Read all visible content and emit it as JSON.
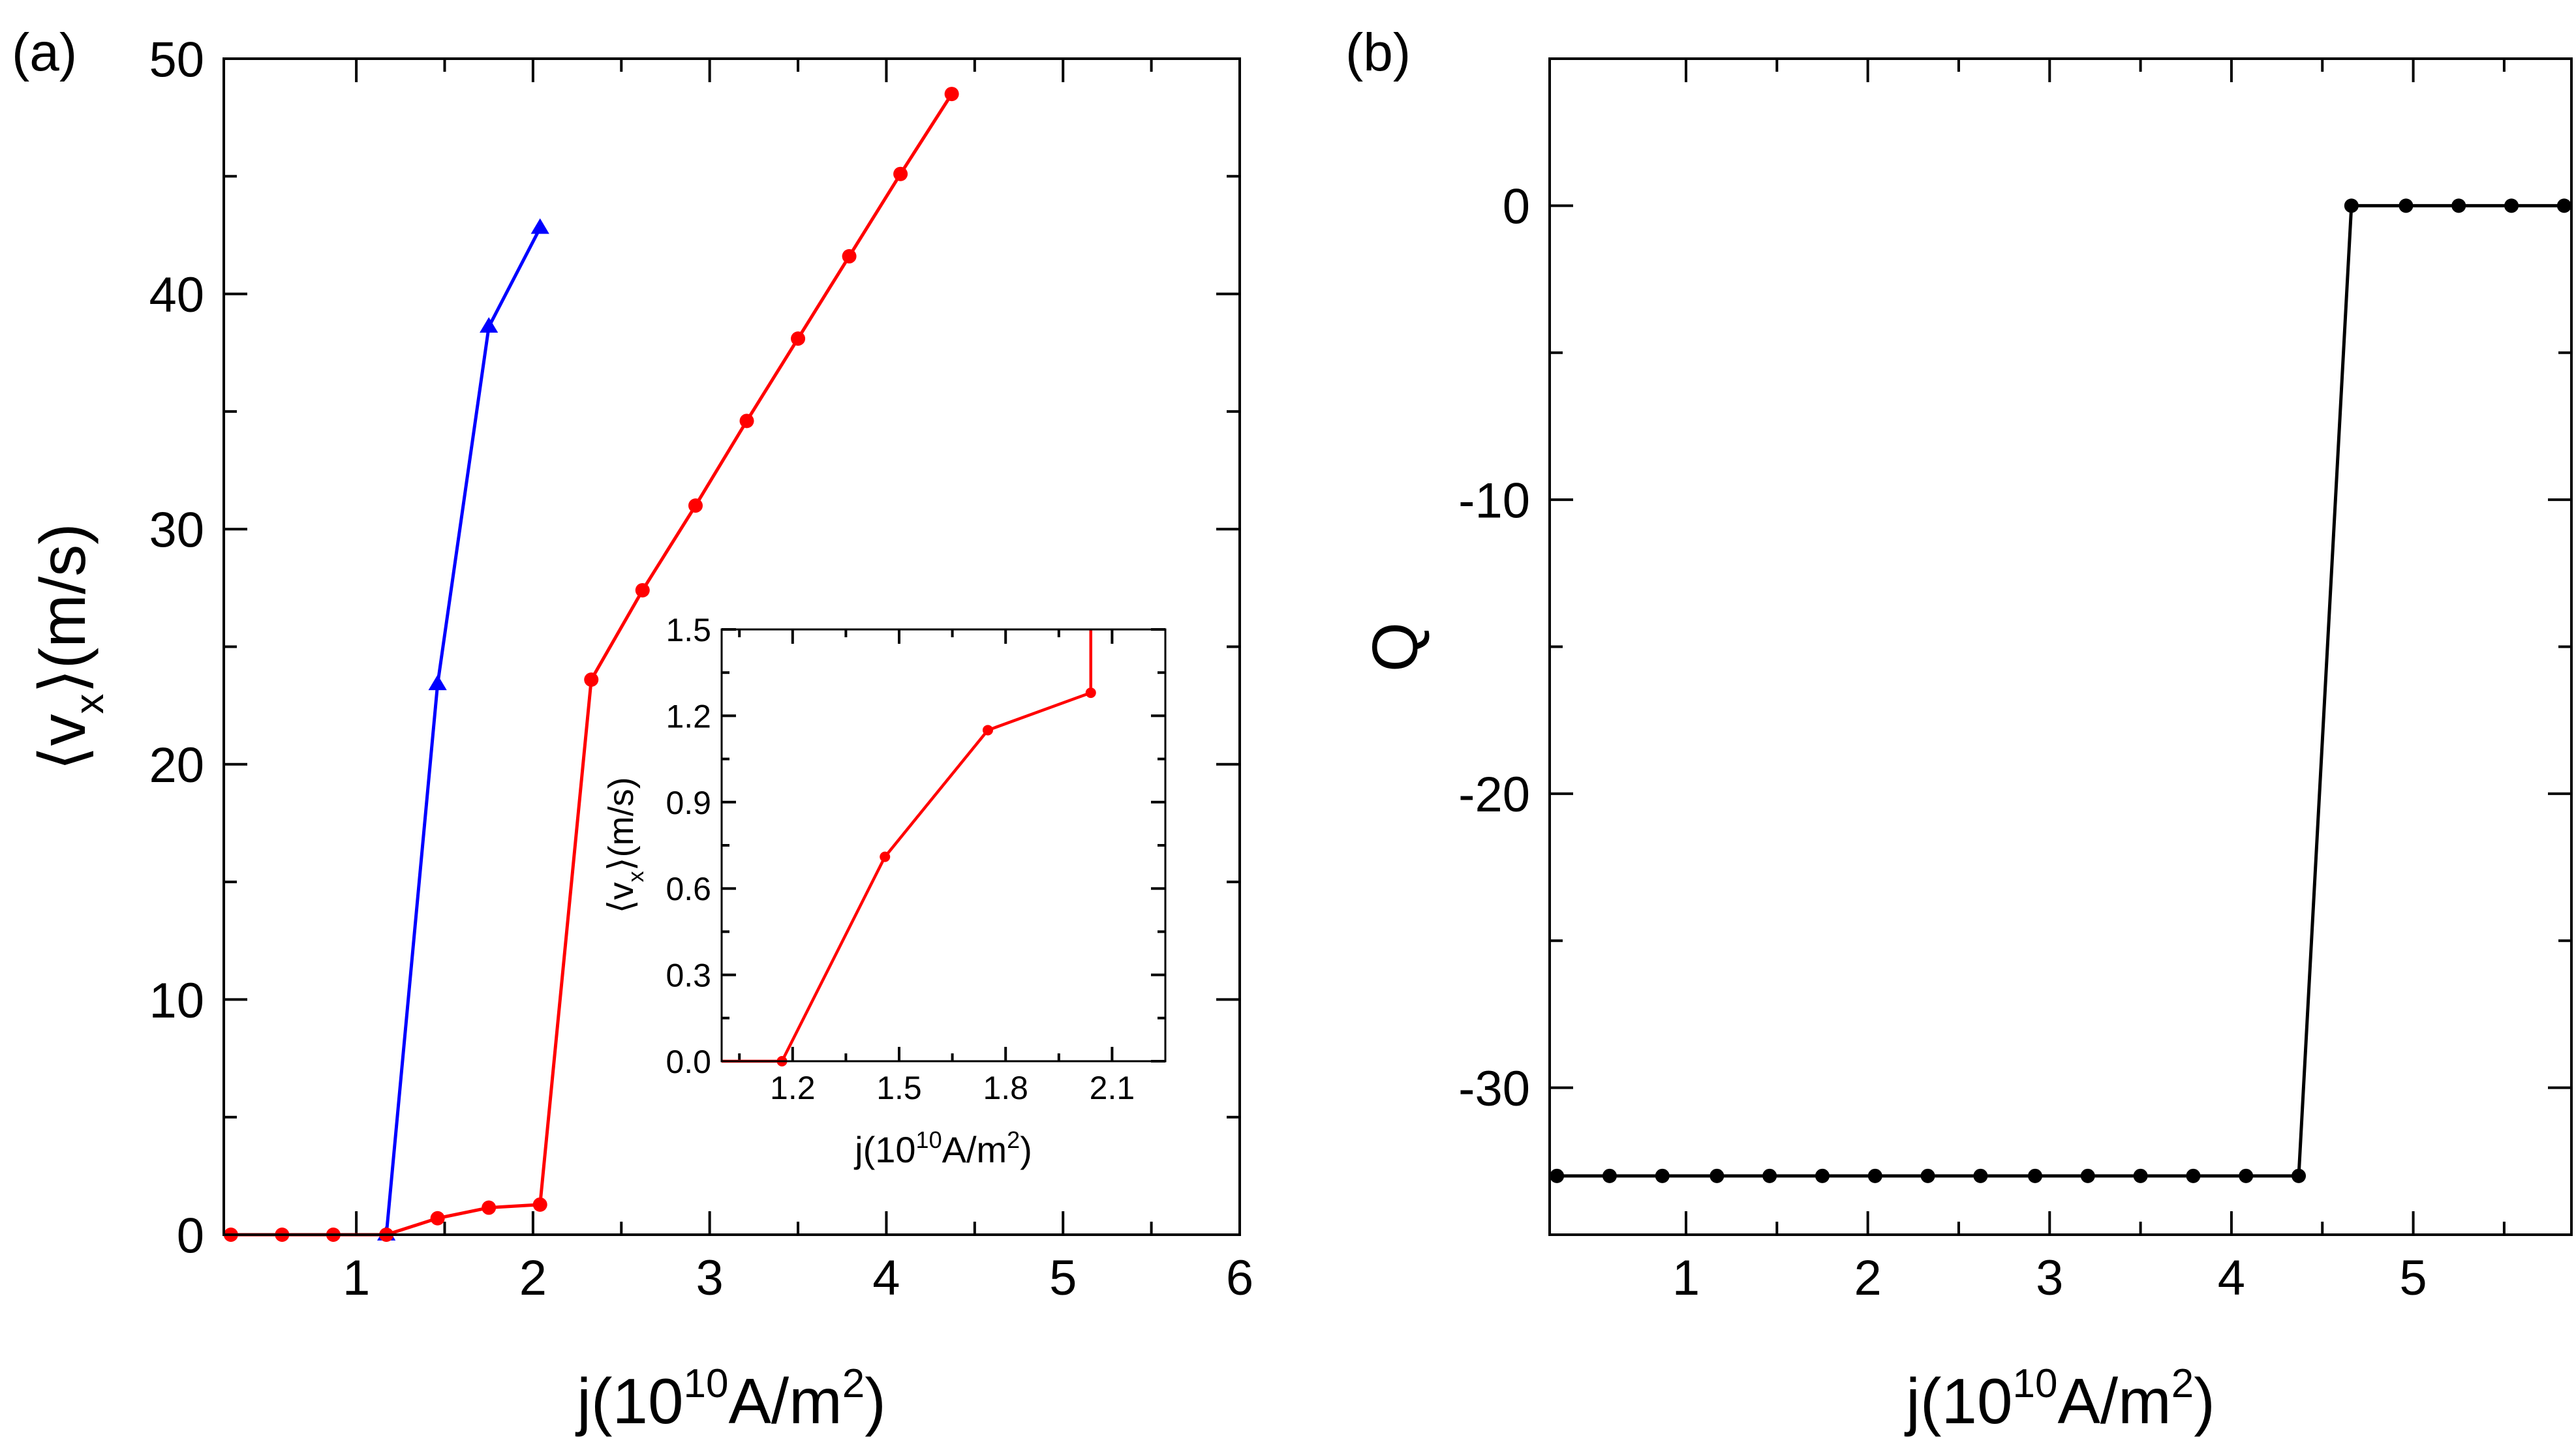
{
  "panels": {
    "a": {
      "label": "(a)"
    },
    "b": {
      "label": "(b)"
    }
  },
  "chart_data": [
    {
      "id": "a",
      "type": "line",
      "title": "",
      "xlabel": "j(10^10 A/m^2)",
      "xlabel_parts": {
        "base": "j(10",
        "exp": "10",
        "mid": "A/m",
        "exp2": "2",
        "end": ")"
      },
      "ylabel": "<v_x>(m/s)",
      "ylabel_parts": {
        "lb": "⟨v",
        "sub": "x",
        "rb": "⟩(m/s)"
      },
      "xlim": [
        0.25,
        6
      ],
      "ylim": [
        0,
        50
      ],
      "xticks": [
        1,
        2,
        3,
        4,
        5,
        6
      ],
      "xtick_labels": [
        "1",
        "2",
        "3",
        "4",
        "5",
        "6"
      ],
      "xminor": [
        1.5,
        2.5,
        3.5,
        4.5,
        5.5
      ],
      "yticks": [
        0,
        10,
        20,
        30,
        40,
        50
      ],
      "ytick_labels": [
        "0",
        "10",
        "20",
        "30",
        "40",
        "50"
      ],
      "yminor": [
        5,
        15,
        25,
        35,
        45
      ],
      "series": [
        {
          "name": "blue",
          "color": "#0000ff",
          "marker": "triangle",
          "x": [
            1.17,
            1.46,
            1.75,
            2.04
          ],
          "y": [
            0,
            23.4,
            38.6,
            42.8
          ]
        },
        {
          "name": "red",
          "color": "#ff0000",
          "marker": "circle",
          "x": [
            0.29,
            0.58,
            0.87,
            1.17,
            1.46,
            1.75,
            2.04,
            2.33,
            2.62,
            2.92,
            3.21,
            3.5,
            3.79,
            4.08,
            4.37
          ],
          "y": [
            0,
            0,
            0,
            0,
            0.7,
            1.15,
            1.28,
            23.6,
            27.4,
            31.0,
            34.6,
            38.1,
            41.6,
            45.1,
            48.5
          ]
        }
      ],
      "inset": {
        "type": "line",
        "xlabel": "j(10^10 A/m^2)",
        "ylabel": "<v_x>(m/s)",
        "xlim": [
          1.0,
          2.25
        ],
        "ylim": [
          0,
          1.5
        ],
        "xticks": [
          1.2,
          1.5,
          1.8,
          2.1
        ],
        "xtick_labels": [
          "1.2",
          "1.5",
          "1.8",
          "2.1"
        ],
        "xminor": [
          1.05,
          1.35,
          1.65,
          1.95
        ],
        "yticks": [
          0,
          0.3,
          0.6,
          0.9,
          1.2,
          1.5
        ],
        "ytick_labels": [
          "0.0",
          "0.3",
          "0.6",
          "0.9",
          "1.2",
          "1.5"
        ],
        "yminor": [
          0.15,
          0.45,
          0.75,
          1.05,
          1.35
        ],
        "series": [
          {
            "name": "red",
            "color": "#ff0000",
            "marker": "circle",
            "x": [
              1.0,
              1.17,
              1.46,
              1.75,
              2.04,
              2.04
            ],
            "y": [
              0,
              0,
              0.71,
              1.15,
              1.28,
              1.5
            ],
            "marker_mask": [
              0,
              1,
              1,
              1,
              1,
              0
            ]
          }
        ]
      }
    },
    {
      "id": "b",
      "type": "line",
      "title": "",
      "xlabel": "j(10^10 A/m^2)",
      "xlabel_parts": {
        "base": "j(10",
        "exp": "10",
        "mid": "A/m",
        "exp2": "2",
        "end": ")"
      },
      "ylabel": "Q",
      "xlim": [
        0.25,
        5.87
      ],
      "ylim": [
        -35,
        5
      ],
      "xticks": [
        1,
        2,
        3,
        4,
        5
      ],
      "xtick_labels": [
        "1",
        "2",
        "3",
        "4",
        "5"
      ],
      "xminor": [
        1.5,
        2.5,
        3.5,
        4.5,
        5.5
      ],
      "yticks": [
        -30,
        -20,
        -10,
        0
      ],
      "ytick_labels": [
        "-30",
        "-20",
        "-10",
        "0"
      ],
      "yminor": [
        -35,
        -25,
        -15,
        -5,
        5
      ],
      "series": [
        {
          "name": "Q",
          "color": "#000000",
          "marker": "circle",
          "x": [
            0.29,
            0.58,
            0.87,
            1.17,
            1.46,
            1.75,
            2.04,
            2.33,
            2.62,
            2.92,
            3.21,
            3.5,
            3.79,
            4.08,
            4.37,
            4.66,
            4.96,
            5.25,
            5.54,
            5.83
          ],
          "y": [
            -33,
            -33,
            -33,
            -33,
            -33,
            -33,
            -33,
            -33,
            -33,
            -33,
            -33,
            -33,
            -33,
            -33,
            -33,
            0,
            0,
            0,
            0,
            0
          ]
        }
      ]
    }
  ]
}
